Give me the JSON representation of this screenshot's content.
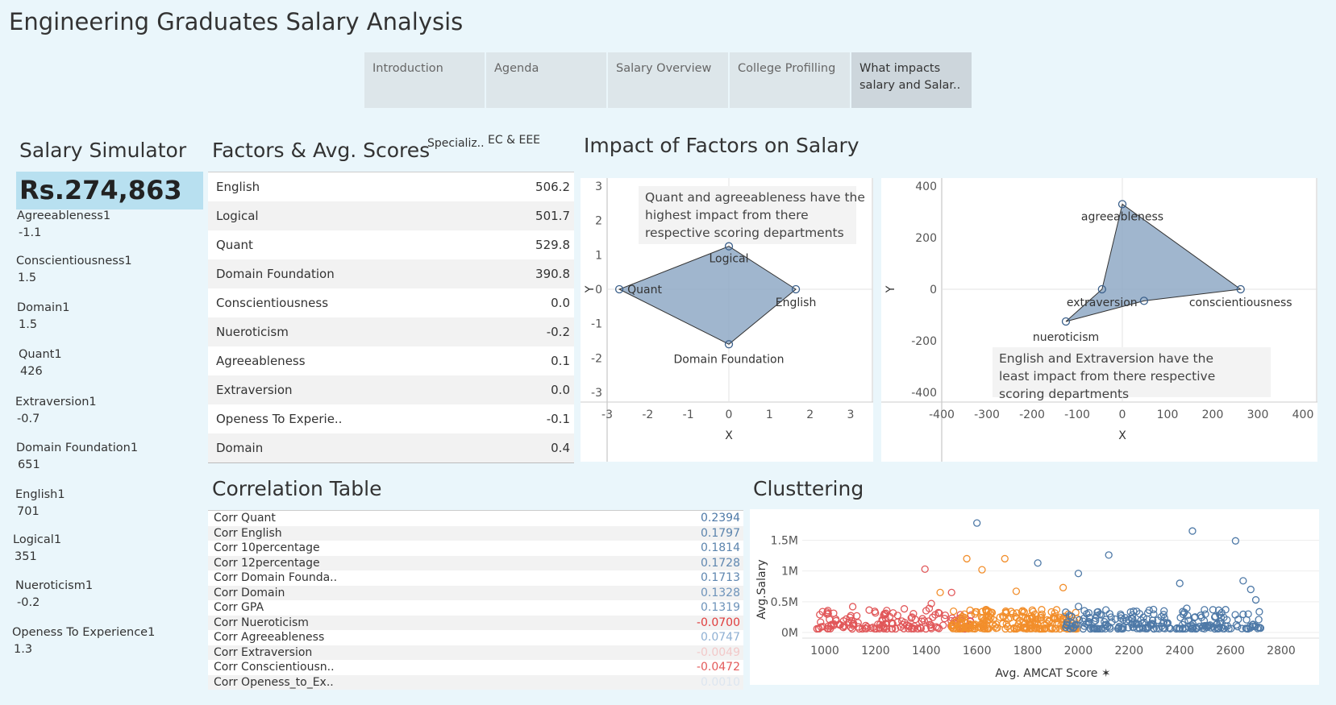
{
  "title": "Engineering Graduates Salary Analysis",
  "tabs": [
    {
      "label": "Introduction"
    },
    {
      "label": "Agenda"
    },
    {
      "label": "Salary Overview"
    },
    {
      "label": "College Profilling"
    },
    {
      "label": "What impacts salary and Salar.."
    }
  ],
  "simulator": {
    "title": "Salary Simulator",
    "value": "Rs.274,863",
    "params": [
      {
        "label": "Agreeableness1",
        "value": "-1.1"
      },
      {
        "label": "Conscientiousness1",
        "value": "1.5"
      },
      {
        "label": "Domain1",
        "value": "1.5"
      },
      {
        "label": "Quant1",
        "value": "426"
      },
      {
        "label": "Extraversion1",
        "value": "-0.7"
      },
      {
        "label": "Domain Foundation1",
        "value": "651"
      },
      {
        "label": "English1",
        "value": "701"
      },
      {
        "label": "Logical1",
        "value": "351"
      },
      {
        "label": "Nueroticism1",
        "value": "-0.2"
      },
      {
        "label": "Openess To Experience1",
        "value": "1.3"
      }
    ]
  },
  "factors": {
    "title": "Factors & Avg. Scores",
    "filter_label": "Specializ..",
    "filter_value": "EC & EEE",
    "rows": [
      {
        "label": "English",
        "value": "506.2"
      },
      {
        "label": "Logical",
        "value": "501.7"
      },
      {
        "label": "Quant",
        "value": "529.8"
      },
      {
        "label": "Domain Foundation",
        "value": "390.8"
      },
      {
        "label": "Conscientiousness",
        "value": "0.0"
      },
      {
        "label": "Nueroticism",
        "value": "-0.2"
      },
      {
        "label": "Agreeableness",
        "value": "0.1"
      },
      {
        "label": "Extraversion",
        "value": "0.0"
      },
      {
        "label": "Openess To Experie..",
        "value": "-0.1"
      },
      {
        "label": "Domain",
        "value": "0.4"
      }
    ]
  },
  "impact": {
    "title": "Impact of Factors on Salary"
  },
  "correlation": {
    "title": "Correlation Table",
    "rows": [
      {
        "label": "Corr Quant",
        "value": "0.2394",
        "color": "#4e79a7"
      },
      {
        "label": "Corr English",
        "value": "0.1797",
        "color": "#5b84ad"
      },
      {
        "label": "Corr 10percentage",
        "value": "0.1814",
        "color": "#5b84ad"
      },
      {
        "label": "Corr 12percentage",
        "value": "0.1728",
        "color": "#5f87b0"
      },
      {
        "label": "Corr Domain Founda..",
        "value": "0.1713",
        "color": "#5f87b0"
      },
      {
        "label": "Corr Domain",
        "value": "0.1328",
        "color": "#6d93ba"
      },
      {
        "label": "Corr GPA",
        "value": "0.1319",
        "color": "#6d93ba"
      },
      {
        "label": "Corr Nueroticism",
        "value": "-0.0700",
        "color": "#e03c3c"
      },
      {
        "label": "Corr Agreeableness",
        "value": "0.0747",
        "color": "#8fb0d3"
      },
      {
        "label": "Corr Extraversion",
        "value": "-0.0049",
        "color": "#f2c9c9"
      },
      {
        "label": "Corr Conscientiousn..",
        "value": "-0.0472",
        "color": "#e35a5a"
      },
      {
        "label": "Corr Openess_to_Ex..",
        "value": "0.0010",
        "color": "#dde6f0"
      }
    ]
  },
  "clustering": {
    "title": "Clusttering"
  },
  "chart_data": [
    {
      "type": "scatter",
      "subtype": "radar-polygon",
      "annotation": "Quant and agreeableness have the highest impact from there respective scoring departments",
      "xlabel": "X",
      "ylabel": "Y",
      "xlim": [
        -3,
        3
      ],
      "ylim": [
        -3,
        3
      ],
      "xticks": [
        "-3",
        "-2",
        "-1",
        "0",
        "1",
        "2",
        "3"
      ],
      "yticks": [
        "3",
        "2",
        "1",
        "0",
        "-1",
        "-2",
        "-3"
      ],
      "points": [
        {
          "label": "Logical",
          "x": 0,
          "y": 1.25
        },
        {
          "label": "English",
          "x": 1.65,
          "y": 0
        },
        {
          "label": "Domain Foundation",
          "x": 0,
          "y": -1.6
        },
        {
          "label": "Quant",
          "x": -2.7,
          "y": 0
        }
      ],
      "fill": "#8fa9c6"
    },
    {
      "type": "scatter",
      "subtype": "radar-polygon",
      "annotation": "English and Extraversion  have the least impact from there respective scoring departments",
      "xlabel": "X",
      "ylabel": "Y",
      "xlim": [
        -400,
        400
      ],
      "ylim": [
        -400,
        400
      ],
      "xticks": [
        "-400",
        "-300",
        "-200",
        "-100",
        "0",
        "100",
        "200",
        "300",
        "400"
      ],
      "yticks": [
        "400",
        "200",
        "0",
        "-200",
        "-400"
      ],
      "points": [
        {
          "label": "agreeableness",
          "x": 0,
          "y": 330
        },
        {
          "label": "conscientiousness",
          "x": 262,
          "y": 0
        },
        {
          "label": "",
          "x": 48,
          "y": -45
        },
        {
          "label": "nueroticism",
          "x": -125,
          "y": -125
        },
        {
          "label": "extraversion",
          "x": -45,
          "y": 0
        }
      ],
      "fill": "#8fa9c6"
    },
    {
      "type": "scatter",
      "title": "Clusttering",
      "xlabel": "Avg. AMCAT Score",
      "ylabel": "Avg.Salary",
      "xlim": [
        1000,
        2800
      ],
      "ylim": [
        0,
        1900000
      ],
      "xticks": [
        "1000",
        "1200",
        "1400",
        "1600",
        "1800",
        "2000",
        "2200",
        "2400",
        "2600",
        "2800"
      ],
      "yticks": [
        "1.5M",
        "1M",
        "0.5M",
        "0M"
      ],
      "series": [
        {
          "color": "#e15759",
          "range": [
            960,
            1580
          ],
          "outliers": [
            [
              980,
              290000
            ],
            [
              985,
              90000
            ],
            [
              1110,
              420000
            ],
            [
              1395,
              1030000
            ],
            [
              1500,
              650000
            ],
            [
              1420,
              470000
            ]
          ]
        },
        {
          "color": "#f28e2b",
          "range": [
            1500,
            2000
          ],
          "outliers": [
            [
              1560,
              1200000
            ],
            [
              1710,
              1200000
            ],
            [
              1620,
              1020000
            ],
            [
              1755,
              670000
            ],
            [
              1455,
              650000
            ],
            [
              1940,
              730000
            ]
          ]
        },
        {
          "color": "#4e79a7",
          "range": [
            1950,
            2720
          ],
          "outliers": [
            [
              1600,
              1780000
            ],
            [
              2450,
              1650000
            ],
            [
              2620,
              1490000
            ],
            [
              1840,
              1130000
            ],
            [
              2120,
              1260000
            ],
            [
              2000,
              960000
            ],
            [
              2650,
              840000
            ],
            [
              2680,
              700000
            ],
            [
              2700,
              530000
            ],
            [
              2670,
              300000
            ],
            [
              2400,
              800000
            ]
          ]
        }
      ]
    }
  ]
}
